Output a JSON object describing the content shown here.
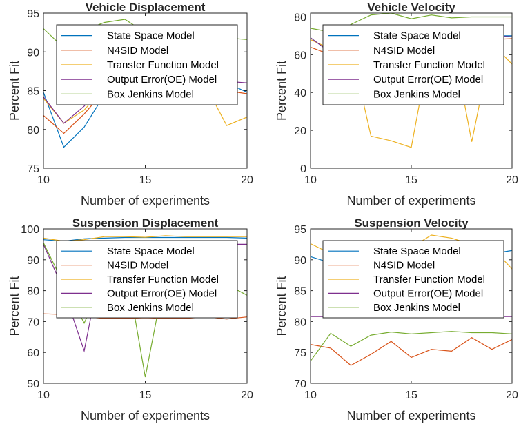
{
  "colors": {
    "state_space": "#0072BD",
    "n4sid": "#D95319",
    "transfer_function": "#EDB120",
    "output_error": "#7E2F8E",
    "box_jenkins": "#77AC30",
    "axis": "#262626"
  },
  "chart_data": [
    {
      "type": "line",
      "title": "Vehicle Displacement",
      "xlabel": "Number of experiments",
      "ylabel": "Percent Fit",
      "xlim": [
        10,
        20
      ],
      "ylim": [
        75,
        95
      ],
      "xticks": [
        10,
        15,
        20
      ],
      "yticks": [
        75,
        80,
        85,
        90,
        95
      ],
      "grid": false,
      "legend_position": "top-right",
      "x": [
        10,
        11,
        12,
        13,
        14,
        15,
        16,
        17,
        18,
        19,
        20
      ],
      "series": [
        {
          "name": "State Space Model",
          "values": [
            84.8,
            77.7,
            80.3,
            84.5,
            86.5,
            86.5,
            86.5,
            86.4,
            86.2,
            86.0,
            84.8
          ]
        },
        {
          "name": "N4SID Model",
          "values": [
            81.8,
            79.5,
            82.0,
            85.0,
            86.0,
            86.0,
            86.0,
            86.0,
            85.6,
            85.0,
            84.6
          ]
        },
        {
          "name": "Transfer Function Model",
          "values": [
            84.0,
            80.8,
            82.5,
            85.5,
            86.5,
            86.5,
            86.5,
            86.0,
            85.5,
            80.5,
            81.6
          ]
        },
        {
          "name": "Output Error(OE) Model",
          "values": [
            84.2,
            80.8,
            83.0,
            86.0,
            86.8,
            86.8,
            86.8,
            86.6,
            86.4,
            86.2,
            86.0
          ]
        },
        {
          "name": "Box Jenkins Model",
          "values": [
            93.0,
            90.5,
            92.8,
            93.8,
            94.2,
            92.5,
            92.8,
            92.5,
            92.2,
            91.8,
            91.6
          ]
        }
      ]
    },
    {
      "type": "line",
      "title": "Vehicle Velocity",
      "xlabel": "Number of experiments",
      "ylabel": "Percent Fit",
      "xlim": [
        10,
        20
      ],
      "ylim": [
        0,
        82
      ],
      "xticks": [
        10,
        15,
        20
      ],
      "yticks": [
        0,
        20,
        40,
        60,
        80
      ],
      "grid": false,
      "legend_position": "top-right",
      "x": [
        10,
        11,
        12,
        13,
        14,
        15,
        16,
        17,
        18,
        19,
        20
      ],
      "series": [
        {
          "name": "State Space Model",
          "values": [
            69,
            61,
            64,
            68,
            70,
            70,
            70,
            70,
            70,
            70,
            70
          ]
        },
        {
          "name": "N4SID Model",
          "values": [
            64,
            60,
            62,
            66,
            68,
            68,
            68,
            68,
            68,
            68,
            68.5
          ]
        },
        {
          "name": "Transfer Function Model",
          "values": [
            68,
            63,
            64,
            17,
            14.5,
            11,
            68,
            70,
            14,
            66,
            55
          ]
        },
        {
          "name": "Output Error(OE) Model",
          "values": [
            69,
            61,
            64,
            68,
            70,
            70,
            70,
            70,
            70,
            70,
            69.5
          ]
        },
        {
          "name": "Box Jenkins Model",
          "values": [
            74,
            72,
            76,
            81,
            82,
            79,
            81,
            79.5,
            80,
            80,
            80
          ]
        }
      ]
    },
    {
      "type": "line",
      "title": "Suspension Displacement",
      "xlabel": "Number of experiments",
      "ylabel": "Percent Fit",
      "xlim": [
        10,
        20
      ],
      "ylim": [
        50,
        100
      ],
      "xticks": [
        10,
        15,
        20
      ],
      "yticks": [
        50,
        60,
        70,
        80,
        90,
        100
      ],
      "grid": false,
      "legend_position": "top-right",
      "x": [
        10,
        11,
        12,
        13,
        14,
        15,
        16,
        17,
        18,
        19,
        20
      ],
      "series": [
        {
          "name": "State Space Model",
          "values": [
            96.5,
            96.0,
            96.8,
            97.0,
            97.2,
            97.2,
            97.2,
            97.2,
            97.2,
            97.2,
            97.0
          ]
        },
        {
          "name": "N4SID Model",
          "values": [
            72.5,
            72.3,
            71.5,
            71.0,
            71.0,
            71.2,
            71.0,
            71.0,
            71.5,
            70.8,
            71.5
          ]
        },
        {
          "name": "Transfer Function Model",
          "values": [
            97.0,
            96.0,
            96.5,
            97.5,
            97.5,
            97.3,
            97.8,
            97.5,
            97.5,
            97.5,
            97.5
          ]
        },
        {
          "name": "Output Error(OE) Model",
          "values": [
            95.0,
            80.0,
            60.5,
            94.0,
            95.0,
            95.0,
            95.0,
            95.0,
            95.0,
            95.0,
            95.0
          ]
        },
        {
          "name": "Box Jenkins Model",
          "values": [
            95.5,
            82.0,
            69.5,
            84.0,
            90.0,
            52.0,
            86.0,
            88.0,
            85.0,
            82.0,
            78.5
          ]
        }
      ]
    },
    {
      "type": "line",
      "title": "Suspension Velocity",
      "xlabel": "Number of experiments",
      "ylabel": "Percent Fit",
      "xlim": [
        10,
        20
      ],
      "ylim": [
        70,
        95
      ],
      "xticks": [
        10,
        15,
        20
      ],
      "yticks": [
        70,
        75,
        80,
        85,
        90,
        95
      ],
      "grid": false,
      "legend_position": "top-right",
      "x": [
        10,
        11,
        12,
        13,
        14,
        15,
        16,
        17,
        18,
        19,
        20
      ],
      "series": [
        {
          "name": "State Space Model",
          "values": [
            90.5,
            89.5,
            90.5,
            91.0,
            91.0,
            91.0,
            91.2,
            91.0,
            91.0,
            91.0,
            91.5
          ]
        },
        {
          "name": "N4SID Model",
          "values": [
            76.3,
            75.7,
            72.9,
            74.7,
            76.8,
            74.2,
            75.5,
            75.2,
            77.4,
            75.5,
            77.1
          ]
        },
        {
          "name": "Transfer Function Model",
          "values": [
            92.6,
            91.0,
            91.5,
            92.0,
            92.0,
            92.0,
            94.0,
            93.5,
            92.5,
            92.0,
            88.5
          ]
        },
        {
          "name": "Output Error(OE) Model",
          "values": [
            80.8,
            80.8,
            80.8,
            80.8,
            80.8,
            80.8,
            80.8,
            80.8,
            80.8,
            80.8,
            80.8
          ]
        },
        {
          "name": "Box Jenkins Model",
          "values": [
            73.6,
            78.1,
            76.0,
            77.8,
            78.3,
            78.0,
            78.2,
            78.4,
            78.2,
            78.2,
            78.0
          ]
        }
      ]
    }
  ]
}
